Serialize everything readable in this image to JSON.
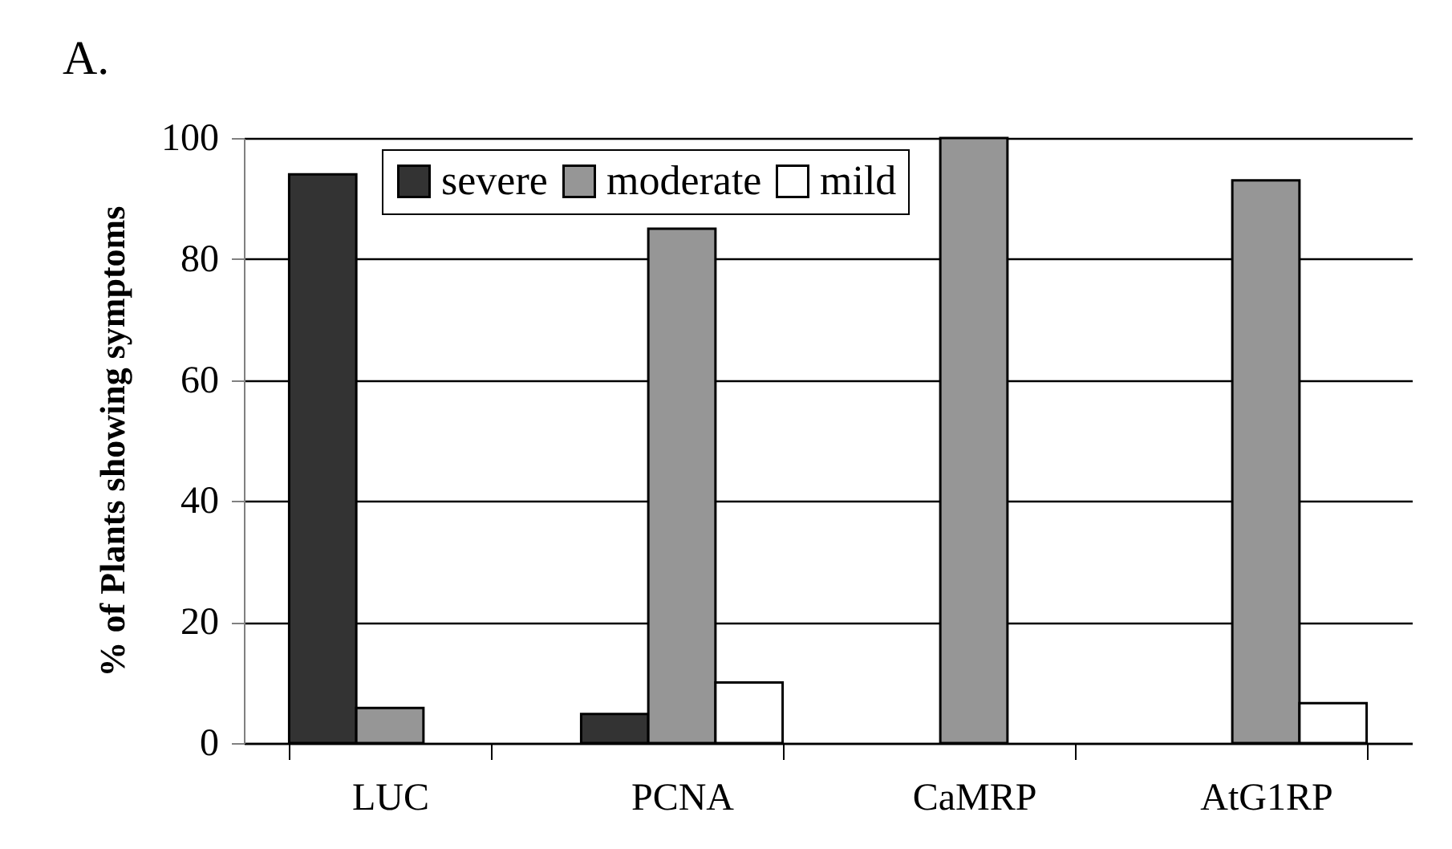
{
  "chart_data": {
    "type": "bar",
    "title": "A.",
    "ylabel": "% of Plants showing symptoms",
    "categories": [
      "LUC",
      "PCNA",
      "CaMRP",
      "AtG1RP"
    ],
    "series": [
      {
        "name": "severe",
        "color": "#333333",
        "values": [
          94,
          4.8,
          0,
          0
        ]
      },
      {
        "name": "moderate",
        "color": "#969696",
        "values": [
          5.8,
          85,
          100,
          93
        ]
      },
      {
        "name": "mild",
        "color": "#ffffff",
        "values": [
          0,
          10,
          0,
          6.6
        ]
      }
    ],
    "ylim": [
      0,
      100
    ],
    "yticks": [
      0,
      20,
      40,
      60,
      80,
      100
    ],
    "grid": "y",
    "legend": "top"
  }
}
